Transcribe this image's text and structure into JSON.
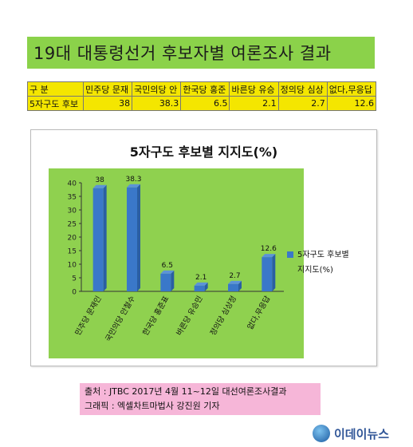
{
  "header": {
    "title": "19대 대통령선거 후보자별 여론조사 결과"
  },
  "table": {
    "headers": [
      "구 분",
      "민주당 문재",
      "국민의당 안",
      "한국당 홍준",
      "바른당 유승",
      "정의당 심상",
      "없다,무응답"
    ],
    "row": [
      "5자구도 후보",
      "38",
      "38.3",
      "6.5",
      "2.1",
      "2.7",
      "12.6"
    ]
  },
  "chart_data": {
    "type": "bar",
    "title": "5자구도 후보별 지지도(%)",
    "categories": [
      "민주당 문재인",
      "국민의당 안철수",
      "한국당 홍준표",
      "바른당 유승민",
      "정의당 심상정",
      "없다,무응답"
    ],
    "series": [
      {
        "name": "5자구도 후보별 지지도(%)",
        "values": [
          38,
          38.3,
          6.5,
          2.1,
          2.7,
          12.6
        ]
      }
    ],
    "data_labels": [
      "38",
      "38.3",
      "6.5",
      "2.1",
      "2.7",
      "12.6"
    ],
    "ylim": [
      0,
      40
    ],
    "yticks": [
      0,
      5,
      10,
      15,
      20,
      25,
      30,
      35,
      40
    ],
    "grid": false,
    "legend_position": "right",
    "colors": {
      "bar": "#3a78c9",
      "plot_bg": "#8fd14f"
    }
  },
  "legend": {
    "line1": "5자구도 후보별",
    "line2": "지지도(%)"
  },
  "source": {
    "line1": "출처 : JTBC 2017년 4월 11~12일 대선여론조사결과",
    "line2": "그래픽 : 엑셀차트마법사 강진원 기자"
  },
  "brand": {
    "name": "이데이뉴스"
  }
}
